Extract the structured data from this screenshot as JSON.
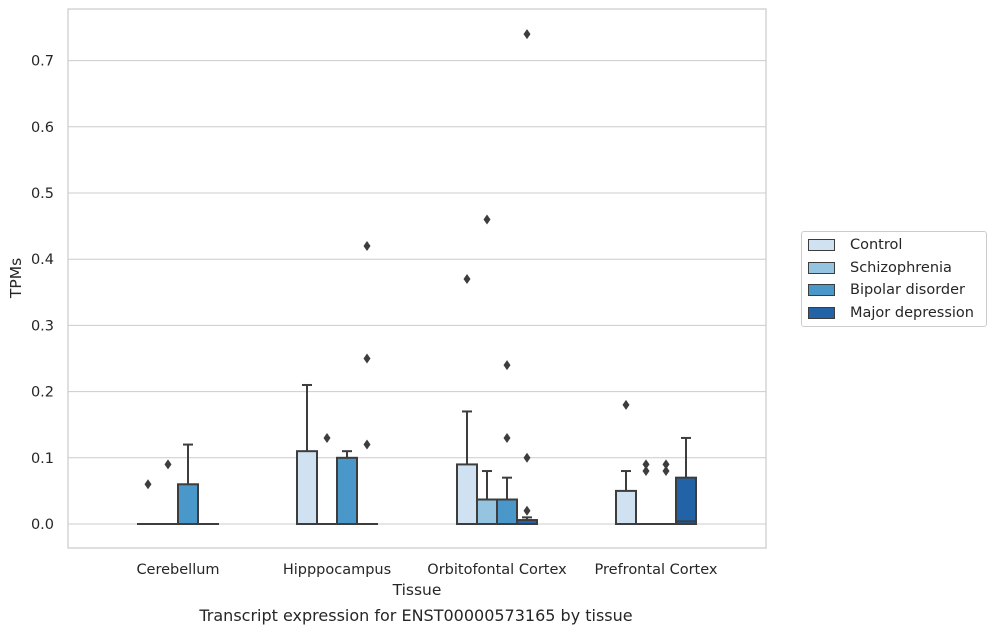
{
  "chart_data": {
    "type": "box",
    "xlabel": "Tissue",
    "ylabel": "TPMs",
    "ylim": [
      -0.037,
      0.778
    ],
    "yticks": [
      0.0,
      0.1,
      0.2,
      0.3,
      0.4,
      0.5,
      0.6,
      0.7
    ],
    "ytick_labels": [
      "0.0",
      "0.1",
      "0.2",
      "0.3",
      "0.4",
      "0.5",
      "0.6",
      "0.7"
    ],
    "grid": "horizontal",
    "legend_position": "right",
    "categories": [
      "Cerebellum",
      "Hipppocampus",
      "Orbitofontal Cortex",
      "Prefrontal Cortex"
    ],
    "series": [
      {
        "name": "Control",
        "color": "#d0e1f2",
        "boxes": [
          {
            "q1": 0.0,
            "median": 0.0,
            "q3": 0.0,
            "whislo": 0.0,
            "whishi": 0.0,
            "fliers": [
              0.06
            ]
          },
          {
            "q1": 0.0,
            "median": 0.0,
            "q3": 0.11,
            "whislo": 0.0,
            "whishi": 0.21,
            "fliers": []
          },
          {
            "q1": 0.0,
            "median": 0.0,
            "q3": 0.09,
            "whislo": 0.0,
            "whishi": 0.17,
            "fliers": [
              0.37
            ]
          },
          {
            "q1": 0.0,
            "median": 0.0,
            "q3": 0.05,
            "whislo": 0.0,
            "whishi": 0.08,
            "fliers": [
              0.18
            ]
          }
        ]
      },
      {
        "name": "Schizophrenia",
        "color": "#94c4df",
        "boxes": [
          {
            "q1": 0.0,
            "median": 0.0,
            "q3": 0.0,
            "whislo": 0.0,
            "whishi": 0.0,
            "fliers": [
              0.09
            ]
          },
          {
            "q1": 0.0,
            "median": 0.0,
            "q3": 0.0,
            "whislo": 0.0,
            "whishi": 0.0,
            "fliers": [
              0.13
            ]
          },
          {
            "q1": 0.0,
            "median": 0.0,
            "q3": 0.037,
            "whislo": 0.0,
            "whishi": 0.08,
            "fliers": [
              0.46
            ]
          },
          {
            "q1": 0.0,
            "median": 0.0,
            "q3": 0.0,
            "whislo": 0.0,
            "whishi": 0.0,
            "fliers": [
              0.08,
              0.09
            ]
          }
        ]
      },
      {
        "name": "Bipolar disorder",
        "color": "#4a98c9",
        "boxes": [
          {
            "q1": 0.0,
            "median": 0.0,
            "q3": 0.06,
            "whislo": 0.0,
            "whishi": 0.12,
            "fliers": []
          },
          {
            "q1": 0.0,
            "median": 0.0,
            "q3": 0.1,
            "whislo": 0.0,
            "whishi": 0.11,
            "fliers": []
          },
          {
            "q1": 0.0,
            "median": 0.0,
            "q3": 0.037,
            "whislo": 0.0,
            "whishi": 0.07,
            "fliers": [
              0.24,
              0.13
            ]
          },
          {
            "q1": 0.0,
            "median": 0.0,
            "q3": 0.0,
            "whislo": 0.0,
            "whishi": 0.0,
            "fliers": [
              0.08,
              0.09
            ]
          }
        ]
      },
      {
        "name": "Major depression",
        "color": "#2263a7",
        "boxes": [
          {
            "q1": 0.0,
            "median": 0.0,
            "q3": 0.0,
            "whislo": 0.0,
            "whishi": 0.0,
            "fliers": []
          },
          {
            "q1": 0.0,
            "median": 0.0,
            "q3": 0.0,
            "whislo": 0.0,
            "whishi": 0.0,
            "fliers": [
              0.42,
              0.25,
              0.12
            ]
          },
          {
            "q1": 0.0,
            "median": 0.0,
            "q3": 0.006,
            "whislo": 0.0,
            "whishi": 0.01,
            "fliers": [
              0.74,
              0.1,
              0.02
            ]
          },
          {
            "q1": 0.0,
            "median": 0.004,
            "q3": 0.07,
            "whislo": 0.0,
            "whishi": 0.13,
            "fliers": []
          }
        ]
      }
    ]
  },
  "caption": "Transcript expression for ENST00000573165 by tissue",
  "legend": {
    "items": [
      {
        "label": "Control",
        "color": "#d0e1f2"
      },
      {
        "label": "Schizophrenia",
        "color": "#94c4df"
      },
      {
        "label": "Bipolar disorder",
        "color": "#4a98c9"
      },
      {
        "label": "Major depression",
        "color": "#2263a7"
      }
    ]
  }
}
